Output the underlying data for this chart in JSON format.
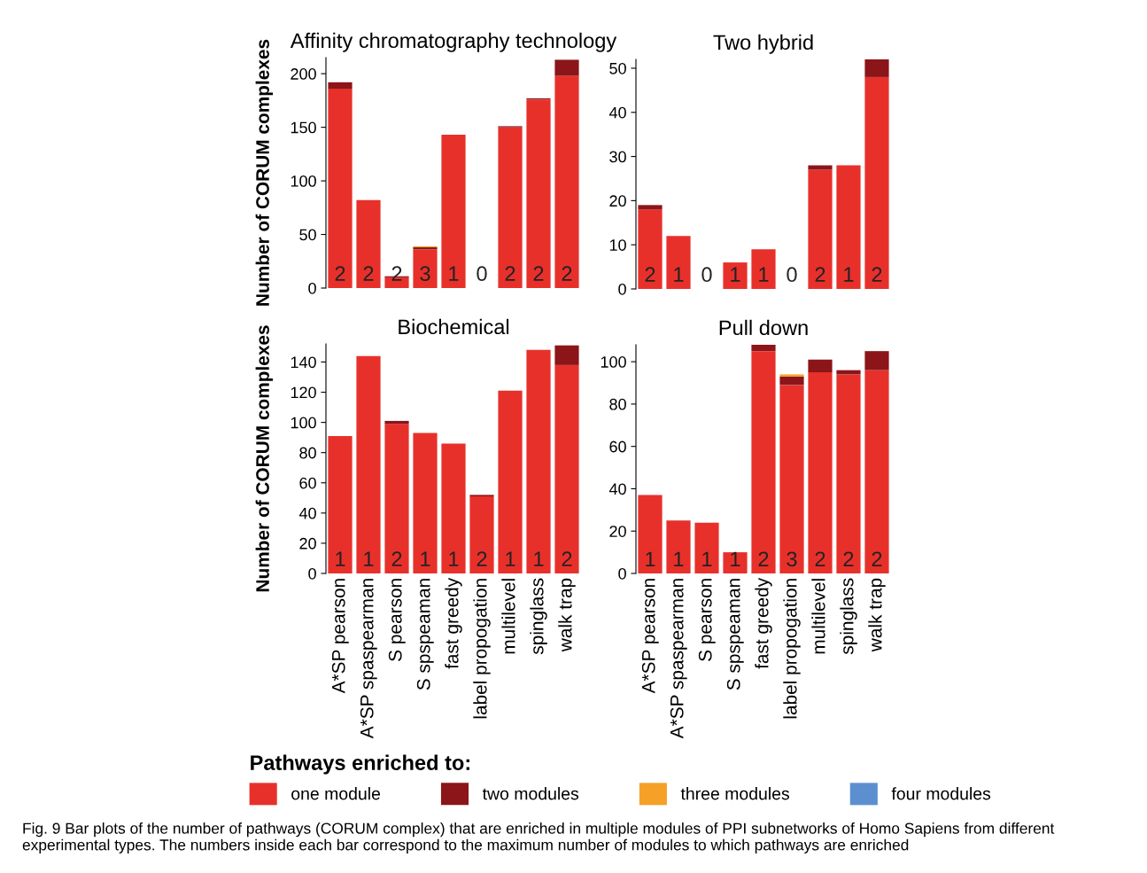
{
  "chart_data": [
    {
      "type": "bar",
      "title": "Affinity chromatography technology",
      "ylabel": "Number of CORUM complexes",
      "stacked": true,
      "tick_labels": "y",
      "categories": [
        "A*SP pearson",
        "A*SP spaspearman",
        "S pearson",
        "S spspeaman",
        "fast greedy",
        "label propogation",
        "multilevel",
        "spinglass",
        "walk trap"
      ],
      "ylim": [
        0,
        215
      ],
      "yticks": [
        0,
        50,
        100,
        150,
        200
      ],
      "grid": false,
      "legend": false,
      "series": [
        {
          "color": "#e8302b",
          "values": [
            186,
            82,
            10,
            36,
            143,
            0,
            150,
            176,
            198
          ]
        },
        {
          "color": "#8b1519",
          "values": [
            6,
            0,
            1,
            2,
            0,
            0,
            1,
            1,
            15
          ]
        },
        {
          "color": "#f5a027",
          "values": [
            0,
            0,
            0,
            1,
            0,
            0,
            0,
            0,
            0
          ]
        }
      ],
      "annotations": [
        "2",
        "2",
        "2",
        "3",
        "1",
        "0",
        "2",
        "2",
        "2"
      ]
    },
    {
      "type": "bar",
      "title": "Two hybrid",
      "stacked": true,
      "tick_labels": "y",
      "categories": [
        "A*SP pearson",
        "A*SP spaspearman",
        "S pearson",
        "S spspeaman",
        "fast greedy",
        "label propogation",
        "multilevel",
        "spinglass",
        "walk trap"
      ],
      "ylim": [
        0,
        52
      ],
      "yticks": [
        0,
        10,
        20,
        30,
        40,
        50
      ],
      "grid": false,
      "legend": false,
      "series": [
        {
          "color": "#e8302b",
          "values": [
            18,
            12,
            0,
            6,
            9,
            0,
            27,
            28,
            48
          ]
        },
        {
          "color": "#8b1519",
          "values": [
            1,
            0,
            0,
            0,
            0,
            0,
            1,
            0,
            4
          ]
        }
      ],
      "annotations": [
        "2",
        "1",
        "0",
        "1",
        "1",
        "0",
        "2",
        "1",
        "2"
      ]
    },
    {
      "type": "bar",
      "title": "Biochemical",
      "ylabel": "Number of CORUM complexes",
      "stacked": true,
      "categories": [
        "A*SP pearson",
        "A*SP spaspearman",
        "S pearson",
        "S spspeaman",
        "fast greedy",
        "label propogation",
        "multilevel",
        "spinglass",
        "walk trap"
      ],
      "ylim": [
        0,
        152
      ],
      "yticks": [
        0,
        20,
        40,
        60,
        80,
        100,
        120,
        140
      ],
      "grid": false,
      "legend": false,
      "series": [
        {
          "color": "#e8302b",
          "values": [
            91,
            144,
            99,
            93,
            86,
            51,
            121,
            148,
            138
          ]
        },
        {
          "color": "#8b1519",
          "values": [
            0,
            0,
            2,
            0,
            0,
            1,
            0,
            0,
            13
          ]
        }
      ],
      "annotations": [
        "1",
        "1",
        "2",
        "1",
        "1",
        "2",
        "1",
        "1",
        "2"
      ]
    },
    {
      "type": "bar",
      "title": "Pull down",
      "stacked": true,
      "legend_title": "Pathways enriched to:",
      "categories": [
        "A*SP pearson",
        "A*SP spaspearman",
        "S pearson",
        "S spspeaman",
        "fast greedy",
        "label propogation",
        "multilevel",
        "spinglass",
        "walk trap"
      ],
      "ylim": [
        0,
        108
      ],
      "yticks": [
        0,
        20,
        40,
        60,
        80,
        100
      ],
      "grid": false,
      "legend": "bottom",
      "series": [
        {
          "name": "one module",
          "color": "#e8302b",
          "values": [
            37,
            25,
            24,
            10,
            105,
            89,
            95,
            94,
            96
          ]
        },
        {
          "name": "two modules",
          "color": "#8b1519",
          "values": [
            0,
            0,
            0,
            0,
            3,
            4,
            6,
            2,
            9
          ]
        },
        {
          "name": "three modules",
          "color": "#f5a027",
          "values": [
            0,
            0,
            0,
            0,
            0,
            1,
            0,
            0,
            0
          ]
        },
        {
          "name": "four modules",
          "color": "#5b8fd0",
          "values": [
            0,
            0,
            0,
            0,
            0,
            0,
            0,
            0,
            0
          ]
        }
      ],
      "annotations": [
        "1",
        "1",
        "1",
        "1",
        "2",
        "3",
        "2",
        "2",
        "2",
        "Fig. 9 Bar plots of the number of pathways (CORUM complex) that are enriched in multiple modules of PPI subnetworks of Homo Sapiens from different experimental types. The numbers inside each bar correspond to the maximum number of modules to which pathways are enriched"
      ]
    }
  ]
}
